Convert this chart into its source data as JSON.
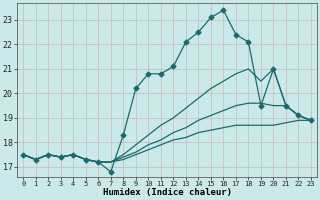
{
  "xlabel": "Humidex (Indice chaleur)",
  "xlim": [
    -0.5,
    23.5
  ],
  "ylim": [
    16.6,
    23.7
  ],
  "xticks": [
    0,
    1,
    2,
    3,
    4,
    5,
    6,
    7,
    8,
    9,
    10,
    11,
    12,
    13,
    14,
    15,
    16,
    17,
    18,
    19,
    20,
    21,
    22,
    23
  ],
  "yticks": [
    17,
    18,
    19,
    20,
    21,
    22,
    23
  ],
  "background_color": "#cce9e9",
  "grid_color_major": "#b0cccc",
  "grid_color_minor": "#d8ecec",
  "line_color": "#1a6b6b",
  "lines": [
    {
      "x": [
        0,
        1,
        2,
        3,
        4,
        5,
        6,
        7,
        8,
        9,
        10,
        11,
        12,
        13,
        14,
        15,
        16,
        17,
        18,
        19,
        20,
        21,
        22,
        23
      ],
      "y": [
        17.5,
        17.3,
        17.5,
        17.4,
        17.5,
        17.3,
        17.2,
        16.8,
        18.3,
        20.2,
        20.8,
        20.8,
        21.1,
        22.1,
        22.5,
        23.1,
        23.4,
        22.4,
        22.1,
        19.5,
        21.0,
        19.5,
        19.1,
        18.9
      ],
      "marker": true
    },
    {
      "x": [
        0,
        1,
        2,
        3,
        4,
        5,
        6,
        7,
        8,
        9,
        10,
        11,
        12,
        13,
        14,
        15,
        16,
        17,
        18,
        19,
        20,
        21,
        22,
        23
      ],
      "y": [
        17.5,
        17.3,
        17.5,
        17.4,
        17.5,
        17.3,
        17.2,
        17.2,
        17.5,
        17.9,
        18.3,
        18.7,
        19.0,
        19.4,
        19.8,
        20.2,
        20.5,
        20.8,
        21.0,
        20.5,
        21.0,
        19.5,
        19.1,
        18.9
      ],
      "marker": false
    },
    {
      "x": [
        0,
        1,
        2,
        3,
        4,
        5,
        6,
        7,
        8,
        9,
        10,
        11,
        12,
        13,
        14,
        15,
        16,
        17,
        18,
        19,
        20,
        21,
        22,
        23
      ],
      "y": [
        17.5,
        17.3,
        17.5,
        17.4,
        17.5,
        17.3,
        17.2,
        17.2,
        17.4,
        17.6,
        17.9,
        18.1,
        18.4,
        18.6,
        18.9,
        19.1,
        19.3,
        19.5,
        19.6,
        19.6,
        19.5,
        19.5,
        19.1,
        18.9
      ],
      "marker": false
    },
    {
      "x": [
        0,
        1,
        2,
        3,
        4,
        5,
        6,
        7,
        8,
        9,
        10,
        11,
        12,
        13,
        14,
        15,
        16,
        17,
        18,
        19,
        20,
        21,
        22,
        23
      ],
      "y": [
        17.5,
        17.3,
        17.5,
        17.4,
        17.5,
        17.3,
        17.2,
        17.2,
        17.3,
        17.5,
        17.7,
        17.9,
        18.1,
        18.2,
        18.4,
        18.5,
        18.6,
        18.7,
        18.7,
        18.7,
        18.7,
        18.8,
        18.9,
        18.9
      ],
      "marker": false
    }
  ]
}
